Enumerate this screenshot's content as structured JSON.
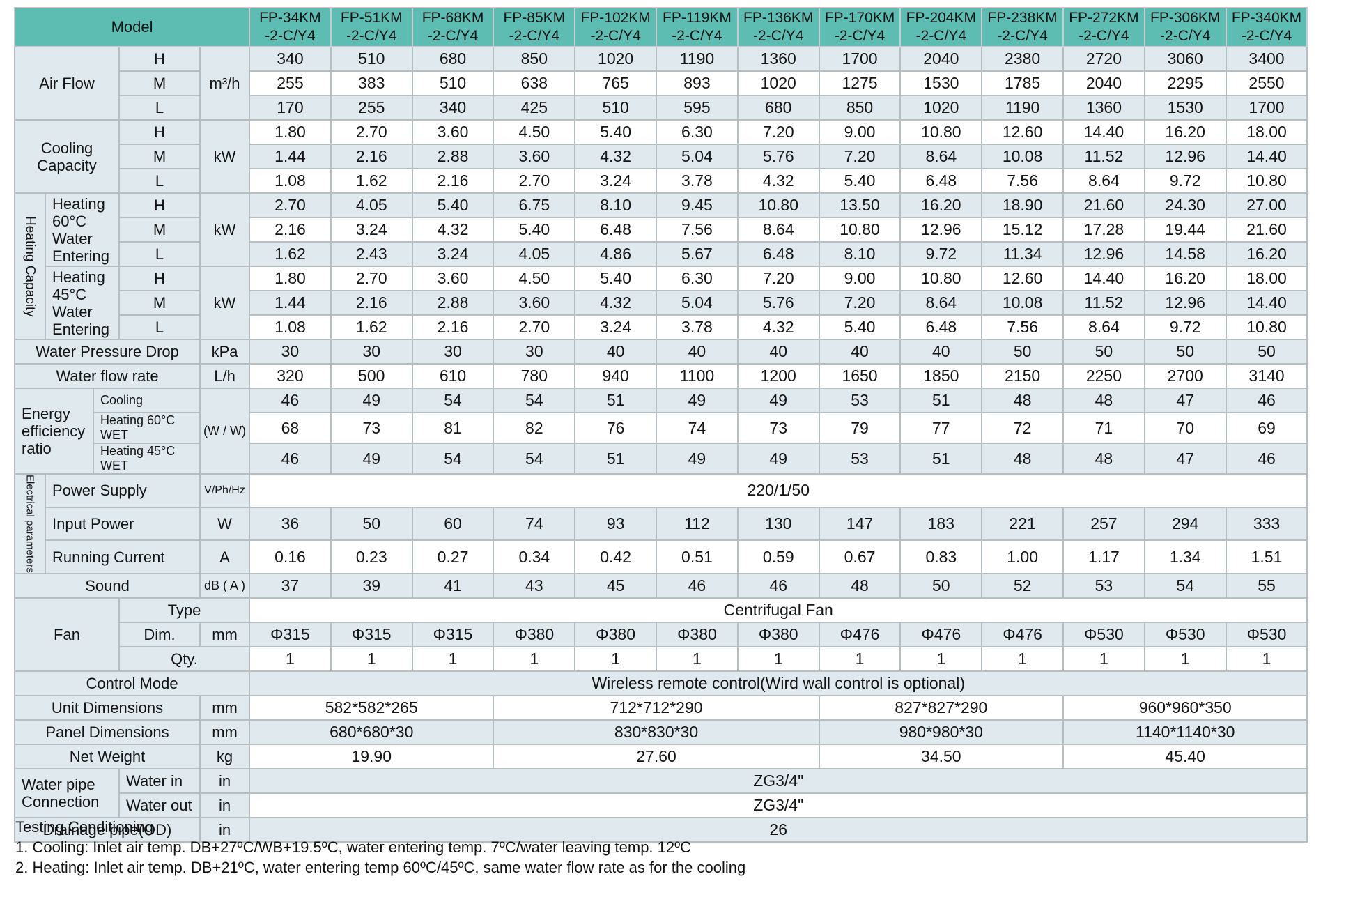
{
  "table": {
    "header": {
      "model_label": "Model",
      "models": [
        {
          "l1": "FP-34KM",
          "l2": "-2-C/Y4"
        },
        {
          "l1": "FP-51KM",
          "l2": "-2-C/Y4"
        },
        {
          "l1": "FP-68KM",
          "l2": "-2-C/Y4"
        },
        {
          "l1": "FP-85KM",
          "l2": "-2-C/Y4"
        },
        {
          "l1": "FP-102KM",
          "l2": "-2-C/Y4"
        },
        {
          "l1": "FP-119KM",
          "l2": "-2-C/Y4"
        },
        {
          "l1": "FP-136KM",
          "l2": "-2-C/Y4"
        },
        {
          "l1": "FP-170KM",
          "l2": "-2-C/Y4"
        },
        {
          "l1": "FP-204KM",
          "l2": "-2-C/Y4"
        },
        {
          "l1": "FP-238KM",
          "l2": "-2-C/Y4"
        },
        {
          "l1": "FP-272KM",
          "l2": "-2-C/Y4"
        },
        {
          "l1": "FP-306KM",
          "l2": "-2-C/Y4"
        },
        {
          "l1": "FP-340KM",
          "l2": "-2-C/Y4"
        }
      ]
    },
    "rows": [
      {
        "name": "airflow-h",
        "cells": [
          {
            "t": "Air Flow",
            "cs": 3,
            "rs": 3,
            "n": "airflow-label"
          },
          {
            "t": "H",
            "n": "speed-h-label"
          },
          {
            "t": "m³/h",
            "rs": 3,
            "n": "unit-label"
          }
        ],
        "values": [
          "340",
          "510",
          "680",
          "850",
          "1020",
          "1190",
          "1360",
          "1700",
          "2040",
          "2380",
          "2720",
          "3060",
          "3400"
        ]
      },
      {
        "name": "airflow-m",
        "cells": [
          {
            "t": "M",
            "n": "speed-m-label"
          }
        ],
        "values": [
          "255",
          "383",
          "510",
          "638",
          "765",
          "893",
          "1020",
          "1275",
          "1530",
          "1785",
          "2040",
          "2295",
          "2550"
        ]
      },
      {
        "name": "airflow-l",
        "cells": [
          {
            "t": "L",
            "n": "speed-l-label"
          }
        ],
        "values": [
          "170",
          "255",
          "340",
          "425",
          "510",
          "595",
          "680",
          "850",
          "1020",
          "1190",
          "1360",
          "1530",
          "1700"
        ]
      },
      {
        "name": "cooling-h",
        "cells": [
          {
            "t": "Cooling Capacity",
            "cs": 3,
            "rs": 3,
            "n": "cooling-capacity-label"
          },
          {
            "t": "H",
            "n": "speed-h-label"
          },
          {
            "t": "kW",
            "rs": 3,
            "n": "unit-label"
          }
        ],
        "values": [
          "1.80",
          "2.70",
          "3.60",
          "4.50",
          "5.40",
          "6.30",
          "7.20",
          "9.00",
          "10.80",
          "12.60",
          "14.40",
          "16.20",
          "18.00"
        ]
      },
      {
        "name": "cooling-m",
        "cells": [
          {
            "t": "M",
            "n": "speed-m-label"
          }
        ],
        "values": [
          "1.44",
          "2.16",
          "2.88",
          "3.60",
          "4.32",
          "5.04",
          "5.76",
          "7.20",
          "8.64",
          "10.08",
          "11.52",
          "12.96",
          "14.40"
        ]
      },
      {
        "name": "cooling-l",
        "cells": [
          {
            "t": "L",
            "n": "speed-l-label"
          }
        ],
        "values": [
          "1.08",
          "1.62",
          "2.16",
          "2.70",
          "3.24",
          "3.78",
          "4.32",
          "5.40",
          "6.48",
          "7.56",
          "8.64",
          "9.72",
          "10.80"
        ]
      },
      {
        "name": "heating60-h",
        "cells": [
          {
            "t": "Heating Capacity",
            "rs": 6,
            "cls": "vert",
            "n": "heating-capacity-label"
          },
          {
            "t": "Heating 60°C Water Entering",
            "cs": 2,
            "rs": 3,
            "cls": "left",
            "n": "heating-60-label"
          },
          {
            "t": "H",
            "n": "speed-h-label"
          },
          {
            "t": "kW",
            "rs": 3,
            "n": "unit-label"
          }
        ],
        "values": [
          "2.70",
          "4.05",
          "5.40",
          "6.75",
          "8.10",
          "9.45",
          "10.80",
          "13.50",
          "16.20",
          "18.90",
          "21.60",
          "24.30",
          "27.00"
        ]
      },
      {
        "name": "heating60-m",
        "cells": [
          {
            "t": "M",
            "n": "speed-m-label"
          }
        ],
        "values": [
          "2.16",
          "3.24",
          "4.32",
          "5.40",
          "6.48",
          "7.56",
          "8.64",
          "10.80",
          "12.96",
          "15.12",
          "17.28",
          "19.44",
          "21.60"
        ]
      },
      {
        "name": "heating60-l",
        "cells": [
          {
            "t": "L",
            "n": "speed-l-label"
          }
        ],
        "values": [
          "1.62",
          "2.43",
          "3.24",
          "4.05",
          "4.86",
          "5.67",
          "6.48",
          "8.10",
          "9.72",
          "11.34",
          "12.96",
          "14.58",
          "16.20"
        ]
      },
      {
        "name": "heating45-h",
        "cells": [
          {
            "t": "Heating 45°C Water Entering",
            "cs": 2,
            "rs": 3,
            "cls": "left",
            "n": "heating-45-label"
          },
          {
            "t": "H",
            "n": "speed-h-label"
          },
          {
            "t": "kW",
            "rs": 3,
            "n": "unit-label"
          }
        ],
        "values": [
          "1.80",
          "2.70",
          "3.60",
          "4.50",
          "5.40",
          "6.30",
          "7.20",
          "9.00",
          "10.80",
          "12.60",
          "14.40",
          "16.20",
          "18.00"
        ]
      },
      {
        "name": "heating45-m",
        "cells": [
          {
            "t": "M",
            "n": "speed-m-label"
          }
        ],
        "values": [
          "1.44",
          "2.16",
          "2.88",
          "3.60",
          "4.32",
          "5.04",
          "5.76",
          "7.20",
          "8.64",
          "10.08",
          "11.52",
          "12.96",
          "14.40"
        ]
      },
      {
        "name": "heating45-l",
        "cells": [
          {
            "t": "L",
            "n": "speed-l-label"
          }
        ],
        "values": [
          "1.08",
          "1.62",
          "2.16",
          "2.70",
          "3.24",
          "3.78",
          "4.32",
          "5.40",
          "6.48",
          "7.56",
          "8.64",
          "9.72",
          "10.80"
        ]
      },
      {
        "name": "water-pressure-drop",
        "cells": [
          {
            "t": "Water Pressure Drop",
            "cs": 4,
            "n": "water-pressure-drop-label"
          },
          {
            "t": "kPa",
            "n": "unit-label"
          }
        ],
        "values": [
          "30",
          "30",
          "30",
          "30",
          "40",
          "40",
          "40",
          "40",
          "40",
          "50",
          "50",
          "50",
          "50"
        ]
      },
      {
        "name": "water-flow-rate",
        "cells": [
          {
            "t": "Water flow rate",
            "cs": 4,
            "n": "water-flow-rate-label"
          },
          {
            "t": "L/h",
            "n": "unit-label"
          }
        ],
        "values": [
          "320",
          "500",
          "610",
          "780",
          "940",
          "1100",
          "1200",
          "1650",
          "1850",
          "2150",
          "2250",
          "2700",
          "3140"
        ]
      },
      {
        "name": "eer-cooling",
        "cells": [
          {
            "t": "Energy efficiency ratio",
            "cs": 2,
            "rs": 3,
            "cls": "left",
            "n": "eer-label"
          },
          {
            "t": "Cooling",
            "cs": 2,
            "cls": "left s",
            "n": "eer-cooling-label"
          },
          {
            "t": "(W / W)",
            "rs": 3,
            "cls": "s",
            "n": "unit-label"
          }
        ],
        "values": [
          "46",
          "49",
          "54",
          "54",
          "51",
          "49",
          "49",
          "53",
          "51",
          "48",
          "48",
          "47",
          "46"
        ]
      },
      {
        "name": "eer-heating60",
        "cells": [
          {
            "t": "Heating 60°C WET",
            "cs": 2,
            "cls": "left s",
            "n": "eer-heating60-label"
          }
        ],
        "values": [
          "68",
          "73",
          "81",
          "82",
          "76",
          "74",
          "73",
          "79",
          "77",
          "72",
          "71",
          "70",
          "69"
        ]
      },
      {
        "name": "eer-heating45",
        "cells": [
          {
            "t": "Heating 45°C WET",
            "cs": 2,
            "cls": "left s",
            "n": "eer-heating45-label"
          }
        ],
        "values": [
          "46",
          "49",
          "54",
          "54",
          "51",
          "49",
          "49",
          "53",
          "51",
          "48",
          "48",
          "47",
          "46"
        ]
      },
      {
        "name": "power-supply",
        "cells": [
          {
            "t": "Electrical parameters",
            "rs": 3,
            "cls": "vert s",
            "n": "electrical-parameters-label"
          },
          {
            "t": "Power Supply",
            "cs": 3,
            "cls": "left",
            "n": "power-supply-label"
          },
          {
            "t": "V/Ph/Hz",
            "cls": "xs",
            "n": "unit-label"
          }
        ],
        "merge": "220/1/50"
      },
      {
        "name": "input-power",
        "cells": [
          {
            "t": "Input Power",
            "cs": 3,
            "cls": "left",
            "n": "input-power-label"
          },
          {
            "t": "W",
            "n": "unit-label"
          }
        ],
        "values": [
          "36",
          "50",
          "60",
          "74",
          "93",
          "112",
          "130",
          "147",
          "183",
          "221",
          "257",
          "294",
          "333"
        ]
      },
      {
        "name": "running-current",
        "cells": [
          {
            "t": "Running Current",
            "cs": 3,
            "cls": "left",
            "n": "running-current-label"
          },
          {
            "t": "A",
            "n": "unit-label"
          }
        ],
        "values": [
          "0.16",
          "0.23",
          "0.27",
          "0.34",
          "0.42",
          "0.51",
          "0.59",
          "0.67",
          "0.83",
          "1.00",
          "1.17",
          "1.34",
          "1.51"
        ]
      },
      {
        "name": "sound",
        "cells": [
          {
            "t": "Sound",
            "cs": 4,
            "n": "sound-label"
          },
          {
            "t": "dB ( A )",
            "cls": "s",
            "n": "unit-label"
          }
        ],
        "values": [
          "37",
          "39",
          "41",
          "43",
          "45",
          "46",
          "46",
          "48",
          "50",
          "52",
          "53",
          "54",
          "55"
        ]
      },
      {
        "name": "fan-type",
        "cells": [
          {
            "t": "Fan",
            "cs": 3,
            "rs": 3,
            "n": "fan-label"
          },
          {
            "t": "Type",
            "cs": 2,
            "n": "fan-type-label"
          }
        ],
        "merge": "Centrifugal Fan"
      },
      {
        "name": "fan-dim",
        "cells": [
          {
            "t": "Dim.",
            "n": "fan-dim-label"
          },
          {
            "t": "mm",
            "n": "unit-label"
          }
        ],
        "values": [
          "Φ315",
          "Φ315",
          "Φ315",
          "Φ380",
          "Φ380",
          "Φ380",
          "Φ380",
          "Φ476",
          "Φ476",
          "Φ476",
          "Φ530",
          "Φ530",
          "Φ530"
        ]
      },
      {
        "name": "fan-qty",
        "cells": [
          {
            "t": "Qty.",
            "cs": 2,
            "n": "fan-qty-label"
          }
        ],
        "values": [
          "1",
          "1",
          "1",
          "1",
          "1",
          "1",
          "1",
          "1",
          "1",
          "1",
          "1",
          "1",
          "1"
        ]
      },
      {
        "name": "control-mode",
        "cells": [
          {
            "t": "Control Mode",
            "cs": 5,
            "n": "control-mode-label"
          }
        ],
        "merge": "Wireless remote control(Wird wall control is optional)"
      },
      {
        "name": "unit-dimensions",
        "cells": [
          {
            "t": "Unit Dimensions",
            "cs": 4,
            "n": "unit-dimensions-label"
          },
          {
            "t": "mm",
            "n": "unit-label"
          }
        ],
        "groups": [
          {
            "t": "582*582*265",
            "cs": 3
          },
          {
            "t": "712*712*290",
            "cs": 4
          },
          {
            "t": "827*827*290",
            "cs": 3
          },
          {
            "t": "960*960*350",
            "cs": 3
          }
        ]
      },
      {
        "name": "panel-dimensions",
        "cells": [
          {
            "t": "Panel Dimensions",
            "cs": 4,
            "n": "panel-dimensions-label"
          },
          {
            "t": "mm",
            "n": "unit-label"
          }
        ],
        "groups": [
          {
            "t": "680*680*30",
            "cs": 3
          },
          {
            "t": "830*830*30",
            "cs": 4
          },
          {
            "t": "980*980*30",
            "cs": 3
          },
          {
            "t": "1140*1140*30",
            "cs": 3
          }
        ]
      },
      {
        "name": "net-weight",
        "cells": [
          {
            "t": "Net Weight",
            "cs": 4,
            "n": "net-weight-label"
          },
          {
            "t": "kg",
            "n": "unit-label"
          }
        ],
        "groups": [
          {
            "t": "19.90",
            "cs": 3
          },
          {
            "t": "27.60",
            "cs": 4
          },
          {
            "t": "34.50",
            "cs": 3
          },
          {
            "t": "45.40",
            "cs": 3
          }
        ]
      },
      {
        "name": "water-in",
        "cells": [
          {
            "t": "Water pipe Connection",
            "cs": 3,
            "rs": 2,
            "cls": "left",
            "n": "water-pipe-connection-label"
          },
          {
            "t": "Water in",
            "cls": "left",
            "n": "water-in-label"
          },
          {
            "t": "in",
            "n": "unit-label"
          }
        ],
        "merge": "ZG3/4\""
      },
      {
        "name": "water-out",
        "cells": [
          {
            "t": "Water out",
            "cls": "left",
            "n": "water-out-label"
          },
          {
            "t": "in",
            "n": "unit-label"
          }
        ],
        "merge": "ZG3/4\""
      },
      {
        "name": "drainage-pipe",
        "cells": [
          {
            "t": "Drainage pipe(OD)",
            "cs": 4,
            "n": "drainage-pipe-label"
          },
          {
            "t": "in",
            "n": "unit-label"
          }
        ],
        "merge": "26"
      }
    ]
  },
  "notes": {
    "title": "Testing Conditioning",
    "items": [
      "1. Cooling: Inlet air temp. DB+27ºC/WB+19.5ºC, water entering temp. 7ºC/water leaving temp. 12ºC",
      "2. Heating: Inlet air temp. DB+21ºC, water entering temp 60ºC/45ºC, same water flow rate as for the cooling"
    ]
  },
  "colors": {
    "header_teal": "#5ebdb2",
    "band_row": "#e0e9ee",
    "plain_row": "#ffffff",
    "grid_line": "#b7bec2",
    "text": "#141414"
  }
}
